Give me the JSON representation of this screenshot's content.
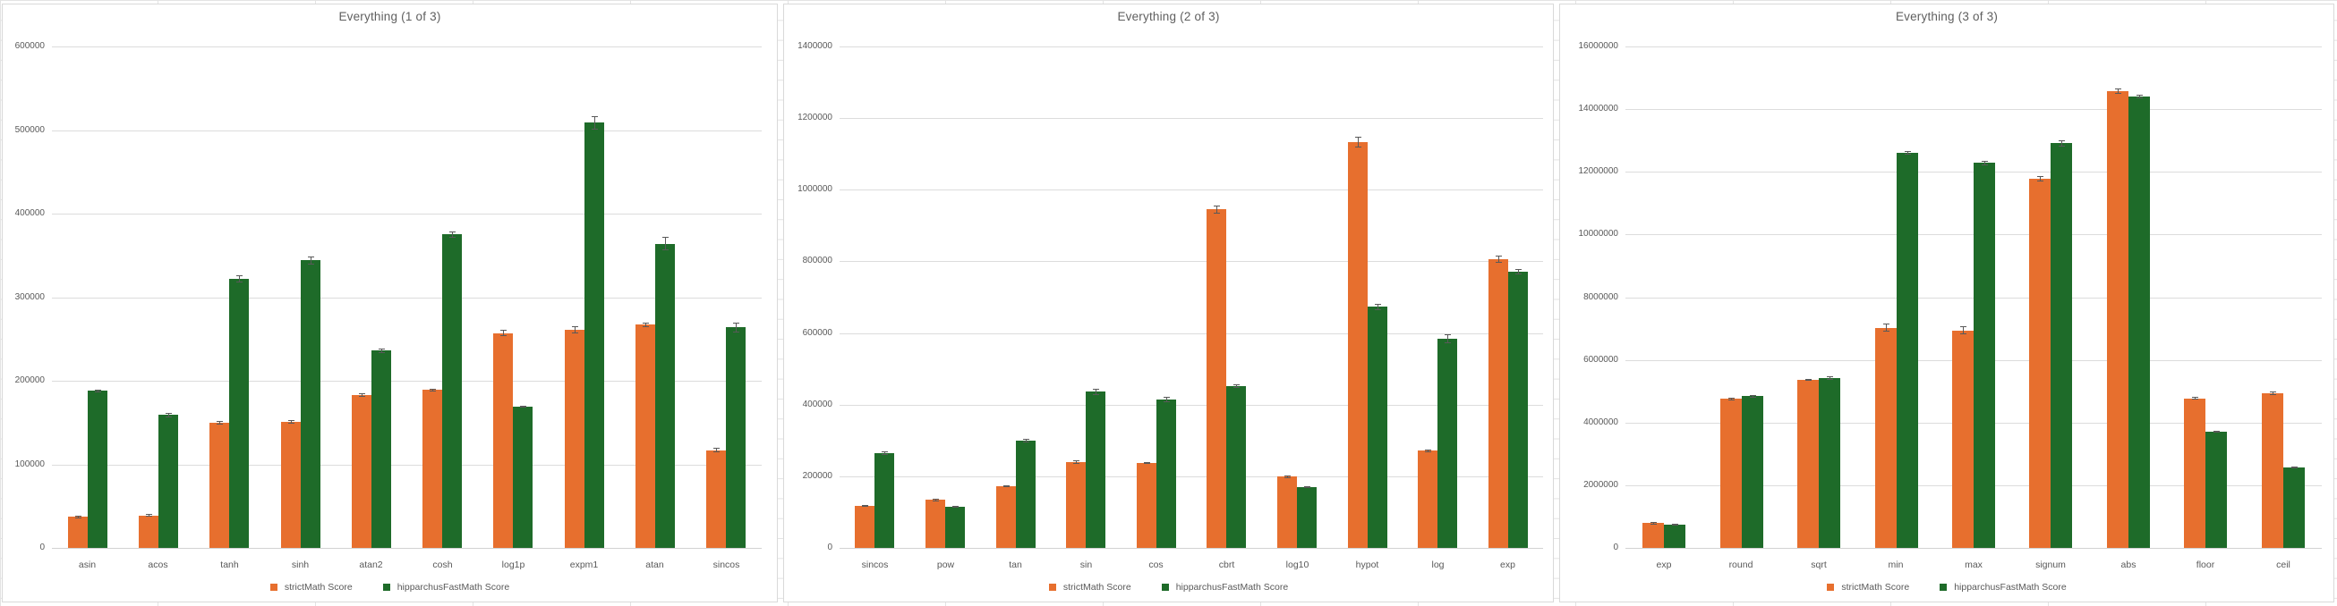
{
  "legend": {
    "strict_label": "strictMath Score",
    "fast_label": "hipparchusFastMath Score"
  },
  "colors": {
    "strict": "#e76f2e",
    "fast": "#1e6b29",
    "gridline": "#dcdcdc",
    "axis_text": "#595959",
    "title_text": "#5f5f5f",
    "error_bar": "#595959",
    "panel_border": "#d9d9d9",
    "spreadsheet_grid": "#e3e3e3"
  },
  "chart_data": [
    {
      "type": "bar",
      "title": "Everything (1 of 3)",
      "ylim": [
        0,
        600000
      ],
      "ytick_step": 100000,
      "grid": true,
      "legend_position": "bottom",
      "categories": [
        "asin",
        "acos",
        "tanh",
        "sinh",
        "atan2",
        "cosh",
        "log1p",
        "expm1",
        "atan",
        "sincos"
      ],
      "series": [
        {
          "name": "strictMath Score",
          "values": [
            37000,
            39000,
            150000,
            151000,
            183000,
            189000,
            257000,
            261000,
            267000,
            117000
          ],
          "errors": [
            1500,
            1500,
            2000,
            2000,
            2500,
            1500,
            3500,
            4000,
            3000,
            2500
          ]
        },
        {
          "name": "hipparchusFastMath Score",
          "values": [
            188000,
            159000,
            322000,
            344000,
            236000,
            375000,
            169000,
            509000,
            364000,
            264000
          ],
          "errors": [
            1500,
            2500,
            4000,
            4500,
            2500,
            4000,
            1200,
            8000,
            8000,
            6000
          ]
        }
      ]
    },
    {
      "type": "bar",
      "title": "Everything (2 of 3)",
      "ylim": [
        0,
        1400000
      ],
      "ytick_step": 200000,
      "grid": true,
      "legend_position": "bottom",
      "categories": [
        "sincos",
        "pow",
        "tan",
        "sin",
        "cos",
        "cbrt",
        "log10",
        "hypot",
        "log",
        "exp"
      ],
      "series": [
        {
          "name": "strictMath Score",
          "values": [
            117000,
            134000,
            173000,
            239000,
            237000,
            945000,
            199000,
            1134000,
            271000,
            805000
          ],
          "errors": [
            2500,
            2000,
            2500,
            5000,
            3000,
            12000,
            2500,
            15000,
            3500,
            10000
          ]
        },
        {
          "name": "hipparchusFastMath Score",
          "values": [
            265000,
            115000,
            300000,
            436000,
            415000,
            452000,
            170000,
            673000,
            584000,
            771000
          ],
          "errors": [
            5000,
            2000,
            5000,
            8000,
            8000,
            6000,
            2500,
            8000,
            12000,
            8000
          ]
        }
      ]
    },
    {
      "type": "bar",
      "title": "Everything (3 of 3)",
      "ylim": [
        0,
        16000000
      ],
      "ytick_step": 2000000,
      "grid": true,
      "legend_position": "bottom",
      "categories": [
        "exp",
        "round",
        "sqrt",
        "min",
        "max",
        "signum",
        "abs",
        "floor",
        "ceil"
      ],
      "series": [
        {
          "name": "strictMath Score",
          "values": [
            790000,
            4760000,
            5370000,
            7030000,
            6940000,
            11790000,
            14580000,
            4770000,
            4930000
          ],
          "errors": [
            30000,
            40000,
            25000,
            120000,
            130000,
            90000,
            80000,
            40000,
            50000
          ]
        },
        {
          "name": "hipparchusFastMath Score",
          "values": [
            750000,
            4840000,
            5420000,
            12600000,
            12280000,
            12910000,
            14410000,
            3710000,
            2570000
          ],
          "errors": [
            25000,
            50000,
            60000,
            60000,
            80000,
            100000,
            60000,
            25000,
            30000
          ]
        }
      ]
    }
  ]
}
